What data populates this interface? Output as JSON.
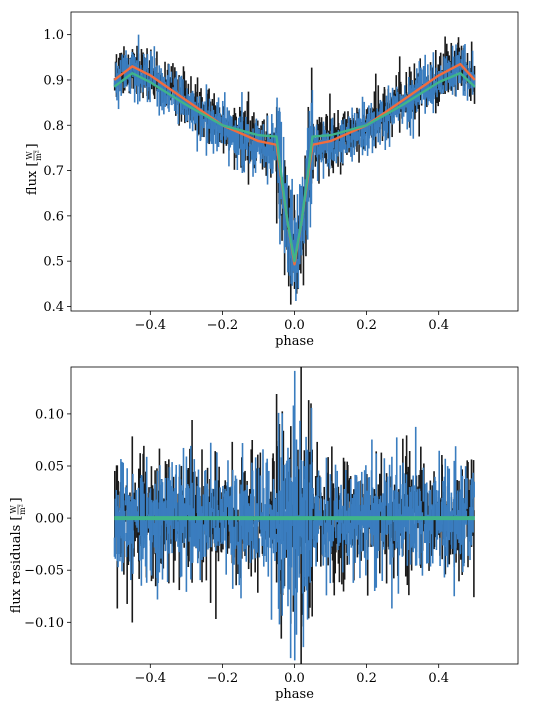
{
  "chart_data": [
    {
      "type": "line",
      "title": "",
      "xlabel": "phase",
      "ylabel": "flux",
      "ylabel_unit_num": "W",
      "ylabel_unit_den": "m²",
      "xlim": [
        -0.62,
        0.62
      ],
      "ylim": [
        0.39,
        1.05
      ],
      "xticks": [
        -0.4,
        -0.2,
        0.0,
        0.2,
        0.4
      ],
      "xtick_labels": [
        "−0.4",
        "−0.2",
        "0.0",
        "0.2",
        "0.4"
      ],
      "yticks": [
        0.4,
        0.5,
        0.6,
        0.7,
        0.8,
        0.9,
        1.0
      ],
      "ytick_labels": [
        "0.4",
        "0.5",
        "0.6",
        "0.7",
        "0.8",
        "0.9",
        "1.0"
      ],
      "colors": {
        "data_black": "#1a1a1a",
        "data_blue": "#3a7dbf",
        "model_orange": "#f26c3d",
        "model_teal": "#3fb48a"
      },
      "series": [
        {
          "color": "#f26c3d",
          "x": [
            -0.5,
            -0.45,
            -0.4,
            -0.3,
            -0.2,
            -0.1,
            -0.05,
            -0.04,
            -0.02,
            0.0,
            0.02,
            0.04,
            0.05,
            0.1,
            0.2,
            0.3,
            0.4,
            0.46,
            0.5
          ],
          "y": [
            0.9,
            0.93,
            0.91,
            0.855,
            0.8,
            0.765,
            0.757,
            0.7,
            0.59,
            0.493,
            0.59,
            0.7,
            0.757,
            0.765,
            0.8,
            0.855,
            0.91,
            0.935,
            0.9
          ]
        },
        {
          "color": "#3fb48a",
          "x": [
            -0.5,
            -0.45,
            -0.4,
            -0.3,
            -0.2,
            -0.1,
            -0.05,
            -0.04,
            -0.02,
            0.0,
            0.02,
            0.04,
            0.05,
            0.1,
            0.2,
            0.3,
            0.4,
            0.46,
            0.5
          ],
          "y": [
            0.885,
            0.915,
            0.895,
            0.845,
            0.8,
            0.778,
            0.775,
            0.71,
            0.59,
            0.5,
            0.59,
            0.71,
            0.775,
            0.778,
            0.8,
            0.845,
            0.895,
            0.915,
            0.885
          ]
        }
      ]
    },
    {
      "type": "line",
      "title": "",
      "xlabel": "phase",
      "ylabel": "flux residuals",
      "ylabel_unit_num": "W",
      "ylabel_unit_den": "m²",
      "xlim": [
        -0.62,
        0.62
      ],
      "ylim": [
        -0.14,
        0.145
      ],
      "xticks": [
        -0.4,
        -0.2,
        0.0,
        0.2,
        0.4
      ],
      "xtick_labels": [
        "−0.4",
        "−0.2",
        "0.0",
        "0.2",
        "0.4"
      ],
      "yticks": [
        -0.1,
        -0.05,
        0.0,
        0.05,
        0.1
      ],
      "ytick_labels": [
        "−0.10",
        "−0.05",
        "0.00",
        "0.05",
        "0.10"
      ],
      "series": [
        {
          "color": "#3fb48a",
          "x": [
            -0.5,
            0.5
          ],
          "y": [
            0.0,
            0.0
          ]
        }
      ]
    }
  ]
}
